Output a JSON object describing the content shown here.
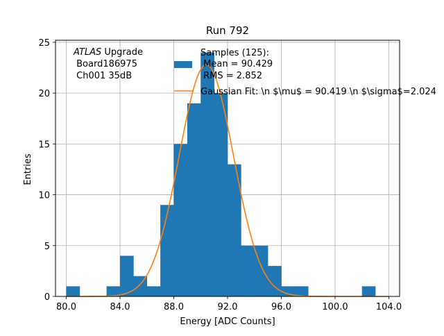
{
  "chart_data": {
    "type": "bar",
    "title": "Run 792",
    "xlabel": "Energy [ADC Counts]",
    "ylabel": "Entries",
    "xlim": [
      79.2,
      104.8
    ],
    "ylim": [
      0,
      25.2
    ],
    "grid": true,
    "x_ticks": [
      80.0,
      84.0,
      88.0,
      92.0,
      96.0,
      100.0,
      104.0
    ],
    "x_tick_labels": [
      "80.0",
      "84.0",
      "88.0",
      "92.0",
      "96.0",
      "100.0",
      "104.0"
    ],
    "y_ticks": [
      0,
      5,
      10,
      15,
      20,
      25
    ],
    "y_tick_labels": [
      "0",
      "5",
      "10",
      "15",
      "20",
      "25"
    ],
    "bin_width": 1.0,
    "bin_edges_left": [
      80,
      81,
      82,
      83,
      84,
      85,
      86,
      87,
      88,
      89,
      90,
      91,
      92,
      93,
      94,
      95,
      96,
      97,
      98,
      99,
      100,
      101,
      102,
      103
    ],
    "counts": [
      1,
      0,
      0,
      1,
      4,
      2,
      1,
      9,
      15,
      19,
      24,
      20,
      13,
      5,
      5,
      3,
      1,
      1,
      0,
      0,
      0,
      0,
      1,
      0
    ],
    "histogram_color": "#1f77b4",
    "fit": {
      "type": "gaussian",
      "mu": 90.419,
      "sigma": 2.024,
      "amplitude": 22.8,
      "x_range": [
        80.0,
        104.0
      ],
      "color": "#ff7f0e"
    },
    "legend": {
      "placement": "top-right",
      "entries": [
        {
          "kind": "patch",
          "lines": [
            "Samples (125):",
            " Mean = 90.429",
            " RMS = 2.852"
          ]
        },
        {
          "kind": "line",
          "lines": [
            "Gaussian Fit: \\n $\\mu$ = 90.419 \\n $\\sigma$=2.024"
          ]
        }
      ]
    },
    "annotation": {
      "italic": "ATLAS",
      "text": " Upgrade",
      "line2": " Board186975",
      "line3": " Ch001 35dB"
    }
  }
}
